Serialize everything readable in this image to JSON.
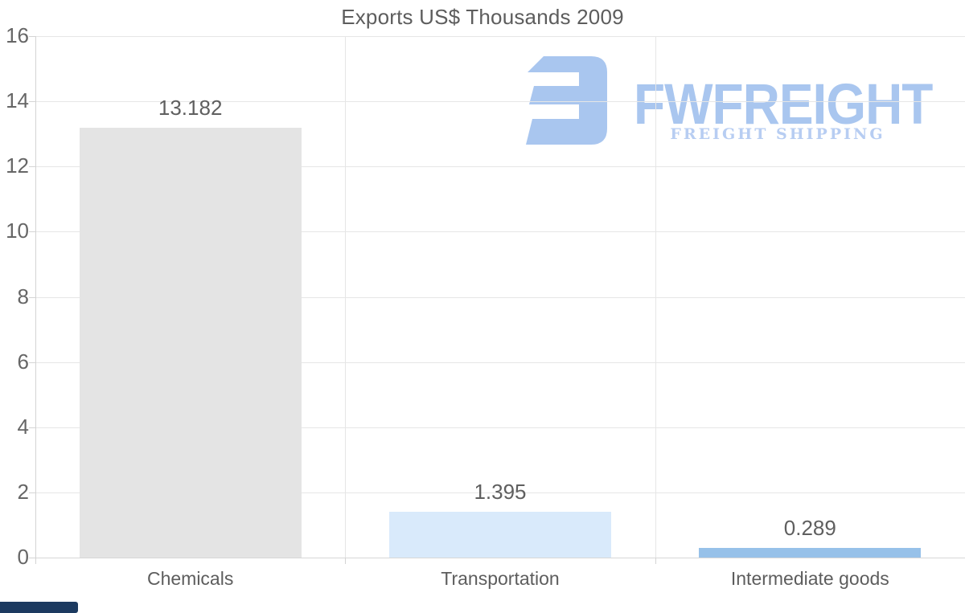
{
  "title": "Exports US$ Thousands 2009",
  "chart_data": {
    "type": "bar",
    "title": "Exports US$ Thousands 2009",
    "categories": [
      "Chemicals",
      "Transportation",
      "Intermediate goods"
    ],
    "values": [
      13.182,
      1.395,
      0.289
    ],
    "value_labels": [
      "13.182",
      "1.395",
      "0.289"
    ],
    "bar_colors": [
      "#e4e4e4",
      "#d9eafb",
      "#97c1e9"
    ],
    "xlabel": "",
    "ylabel": "",
    "ylim": [
      0,
      16
    ],
    "ytick_step": 2,
    "ytick_labels": [
      "0",
      "2",
      "4",
      "6",
      "8",
      "10",
      "12",
      "14",
      "16"
    ],
    "grid": true,
    "legend": false
  },
  "watermark": {
    "brand": "FWFREIGHT",
    "tagline": "FREIGHT SHIPPING",
    "logo_icon": "fwfreight-mark",
    "brand_color": "#a9c6ef",
    "tagline_color": "#b7cdf2"
  },
  "colors": {
    "background": "#ffffff",
    "grid": "#e6e6e6",
    "axis": "#d4d4d4",
    "text": "#5d5d5d",
    "footer_fragment": "#1c3a60"
  }
}
